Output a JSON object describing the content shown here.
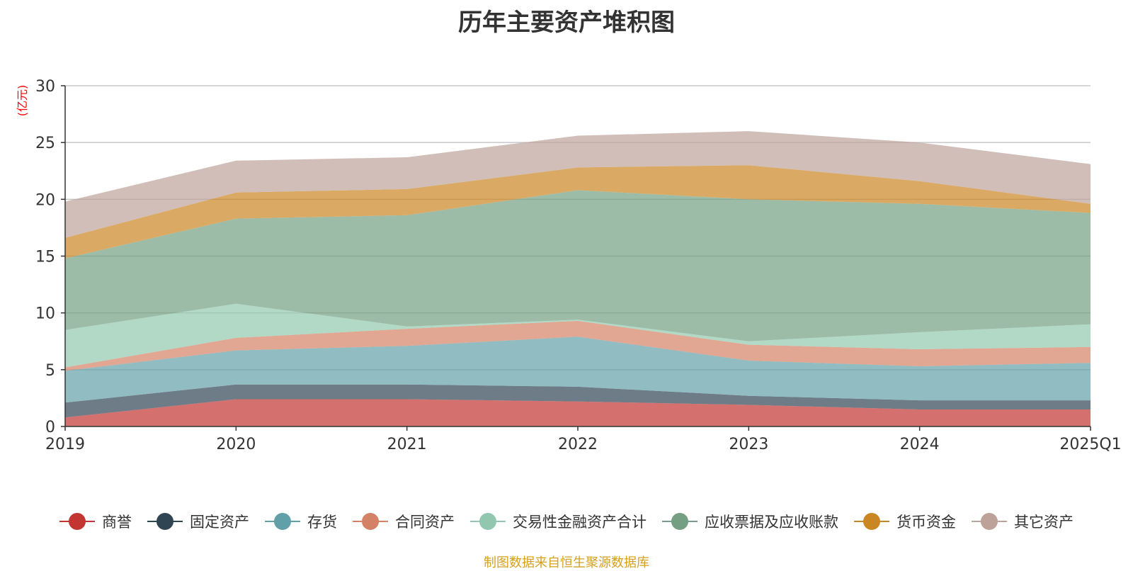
{
  "title": "历年主要资产堆积图",
  "source": "制图数据来自恒生聚源数据库",
  "chart_data": {
    "type": "area",
    "stacked": true,
    "title": "历年主要资产堆积图",
    "ylabel": "(亿元)",
    "ylim": [
      0,
      30
    ],
    "yticks": [
      0,
      5,
      10,
      15,
      20,
      25,
      30
    ],
    "grid": true,
    "legend_position": "bottom",
    "categories": [
      "2019",
      "2020",
      "2021",
      "2022",
      "2023",
      "2024",
      "2025Q1"
    ],
    "series": [
      {
        "name": "商誉",
        "color": "#c23531",
        "values": [
          0.8,
          2.4,
          2.4,
          2.2,
          1.9,
          1.5,
          1.5
        ]
      },
      {
        "name": "固定资产",
        "color": "#2f4554",
        "values": [
          1.3,
          1.3,
          1.3,
          1.3,
          0.8,
          0.8,
          0.8
        ]
      },
      {
        "name": "存货",
        "color": "#61a0a8",
        "values": [
          2.8,
          3.0,
          3.4,
          4.4,
          3.1,
          3.0,
          3.3
        ]
      },
      {
        "name": "合同资产",
        "color": "#d48265",
        "values": [
          0.3,
          1.1,
          1.5,
          1.4,
          1.4,
          1.5,
          1.4
        ]
      },
      {
        "name": "交易性金融资产合计",
        "color": "#91c7ae",
        "values": [
          3.3,
          3.0,
          0.2,
          0.1,
          0.3,
          1.5,
          2.0
        ]
      },
      {
        "name": "应收票据及应收账款",
        "color": "#749f83",
        "values": [
          6.3,
          7.5,
          9.8,
          11.4,
          12.5,
          11.3,
          9.8
        ]
      },
      {
        "name": "货币资金",
        "color": "#ca8622",
        "values": [
          1.8,
          2.3,
          2.3,
          2.0,
          3.0,
          2.0,
          0.8
        ]
      },
      {
        "name": "其它资产",
        "color": "#bda29a",
        "values": [
          3.2,
          2.8,
          2.8,
          2.8,
          3.0,
          3.4,
          3.5
        ]
      }
    ]
  }
}
